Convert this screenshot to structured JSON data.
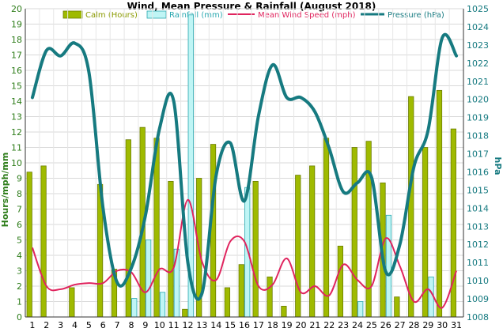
{
  "chart_data": {
    "type": "bar",
    "title": "Wind, Mean Pressure & Rainfall (August 2018)",
    "ylabel_left": "Hours/mph/mm",
    "ylabel_right": "hPa",
    "x": [
      1,
      2,
      3,
      4,
      5,
      6,
      7,
      8,
      9,
      10,
      11,
      12,
      13,
      14,
      15,
      16,
      17,
      18,
      19,
      20,
      21,
      22,
      23,
      24,
      25,
      26,
      27,
      28,
      29,
      30,
      31
    ],
    "ylim_left": [
      0,
      20
    ],
    "ylim_right": [
      1008,
      1025
    ],
    "grid": true,
    "legend_position": "top",
    "series": [
      {
        "name": "Calm (Hours)",
        "kind": "bar",
        "axis": "left",
        "color": "#9fba00",
        "values": [
          9.4,
          9.8,
          0,
          1.9,
          0,
          8.6,
          3.1,
          11.5,
          12.3,
          11.6,
          8.8,
          0.5,
          9.0,
          11.2,
          1.9,
          3.4,
          8.8,
          2.6,
          0.7,
          9.2,
          9.8,
          11.6,
          4.6,
          11.0,
          11.4,
          8.7,
          1.3,
          14.3,
          11.0,
          14.7,
          12.2
        ]
      },
      {
        "name": "Rainfall (mm)",
        "kind": "bar",
        "axis": "left",
        "color": "#bff5f5",
        "values": [
          0,
          0,
          0,
          0,
          0,
          0,
          0,
          1.2,
          5.0,
          1.6,
          4.4,
          19.6,
          0,
          0,
          0,
          8.4,
          0,
          0,
          0,
          0,
          0,
          0,
          0,
          1.0,
          0,
          6.6,
          0,
          0,
          2.6,
          0,
          0
        ]
      },
      {
        "name": "Mean Wind Speed (mph)",
        "kind": "line",
        "axis": "left",
        "color": "#e0245e",
        "values": [
          4.5,
          2.0,
          1.8,
          2.1,
          2.2,
          2.2,
          3.0,
          2.9,
          1.6,
          3.1,
          3.2,
          7.6,
          3.6,
          2.4,
          4.9,
          4.9,
          2.0,
          2.1,
          3.8,
          1.6,
          2.0,
          1.4,
          3.4,
          2.4,
          2.0,
          5.1,
          3.3,
          1.0,
          1.8,
          0.6,
          3.0
        ]
      },
      {
        "name": "Pressure (hPa)",
        "kind": "line",
        "axis": "right",
        "color": "#167a80",
        "values": [
          1020.1,
          1022.7,
          1022.4,
          1023.1,
          1021.5,
          1014.0,
          1009.9,
          1010.7,
          1013.6,
          1018.4,
          1019.9,
          1011.0,
          1009.3,
          1015.8,
          1017.6,
          1014.4,
          1019.1,
          1021.9,
          1020.1,
          1020.1,
          1019.3,
          1017.3,
          1014.9,
          1015.4,
          1015.7,
          1010.5,
          1012.0,
          1016.3,
          1018.3,
          1023.4,
          1022.4
        ]
      }
    ],
    "left_ticks": [
      "0",
      "1",
      "2",
      "3",
      "4",
      "5",
      "6",
      "7",
      "8",
      "9",
      "10",
      "11",
      "12",
      "13",
      "14",
      "15",
      "16",
      "17",
      "18",
      "19",
      "20"
    ],
    "right_ticks": [
      "1008",
      "1009",
      "1010",
      "1011",
      "1012",
      "1013",
      "1014",
      "1015",
      "1016",
      "1017",
      "1018",
      "1019",
      "1020",
      "1021",
      "1022",
      "1023",
      "1024",
      "1025"
    ],
    "x_ticks": [
      "1",
      "2",
      "3",
      "4",
      "5",
      "6",
      "7",
      "8",
      "9",
      "10",
      "11",
      "12",
      "13",
      "14",
      "15",
      "16",
      "17",
      "18",
      "19",
      "20",
      "21",
      "22",
      "23",
      "24",
      "25",
      "26",
      "27",
      "28",
      "29",
      "30",
      "31"
    ]
  }
}
